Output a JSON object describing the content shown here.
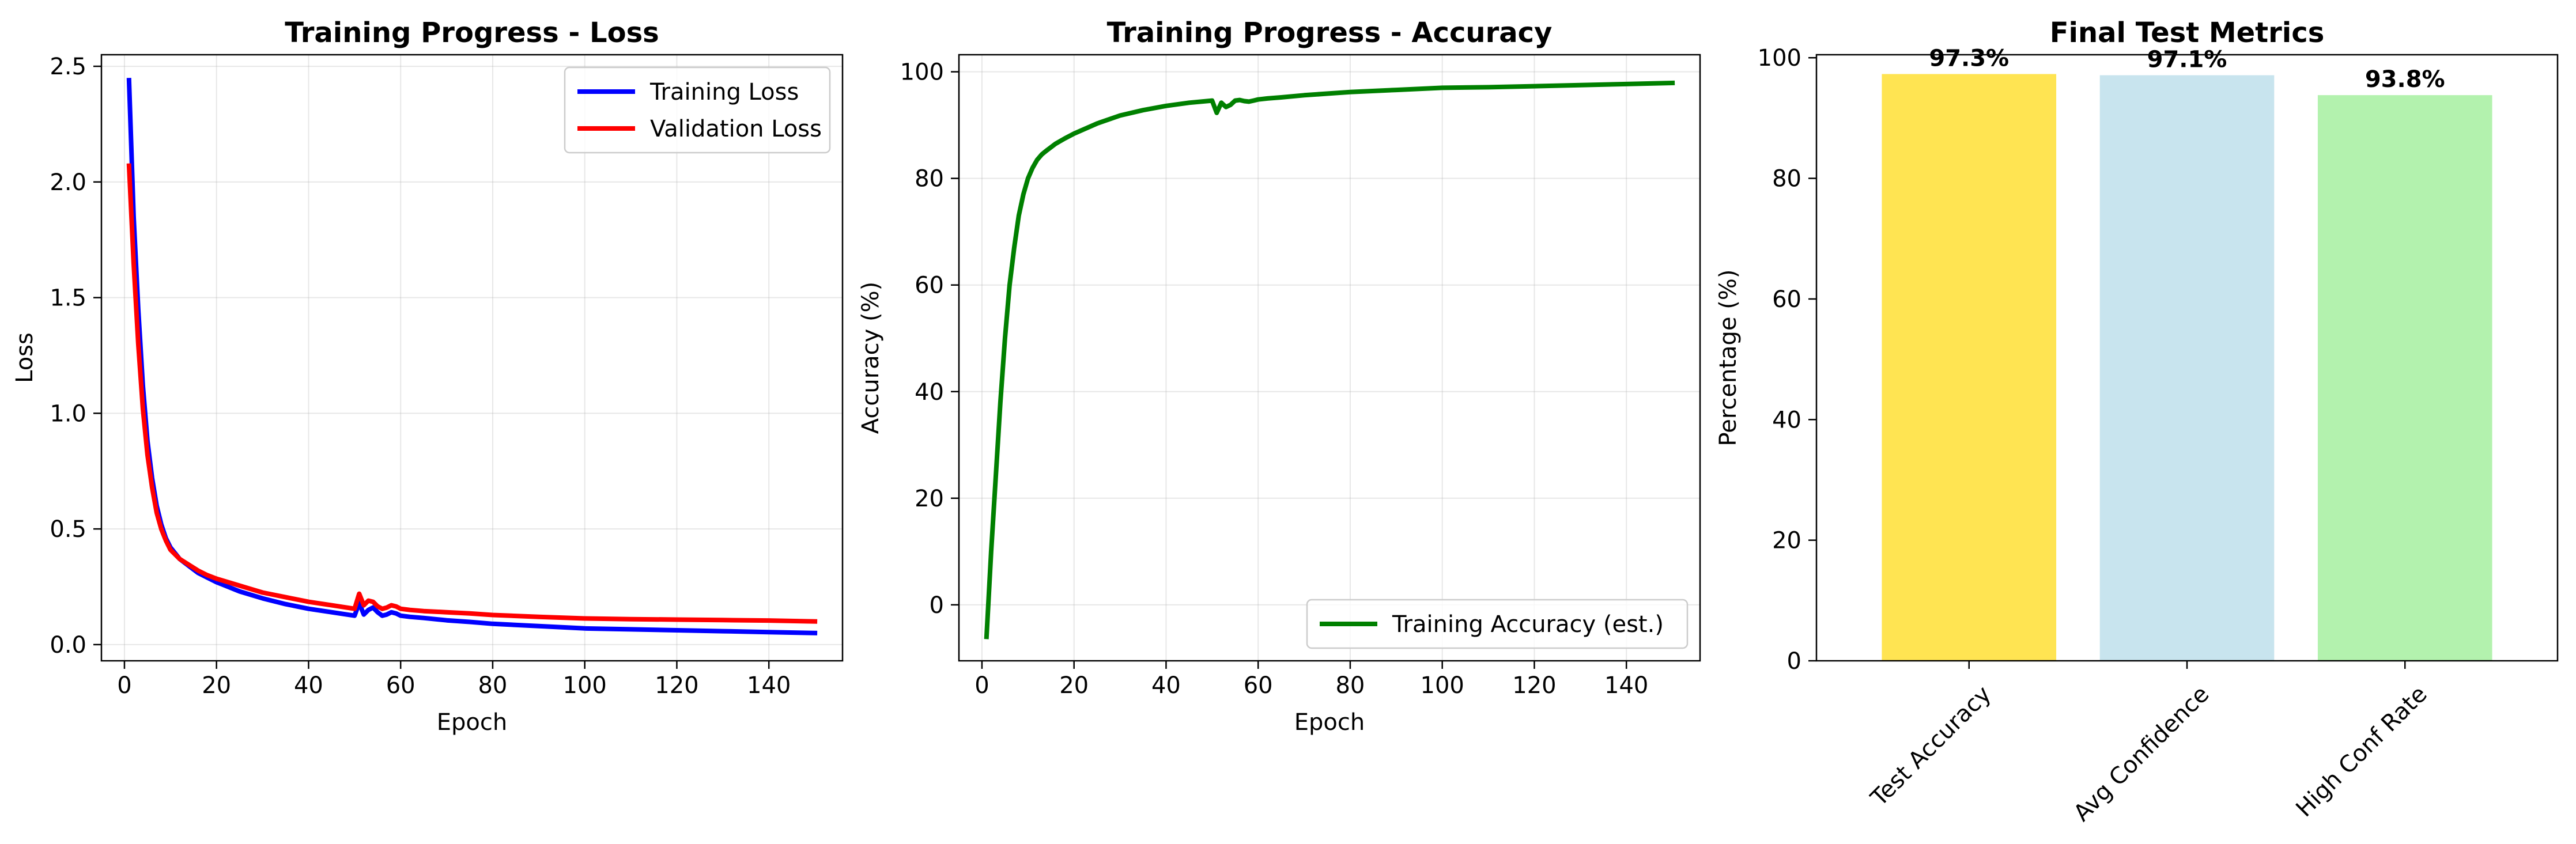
{
  "chart_data": [
    {
      "type": "line",
      "title": "Training Progress - Loss",
      "xlabel": "Epoch",
      "ylabel": "Loss",
      "xlim": [
        -5,
        156
      ],
      "ylim": [
        -0.07,
        2.55
      ],
      "xticks": [
        0,
        20,
        40,
        60,
        80,
        100,
        120,
        140
      ],
      "yticks": [
        0.0,
        0.5,
        1.0,
        1.5,
        2.0,
        2.5
      ],
      "ytick_labels": [
        "0.0",
        "0.5",
        "1.0",
        "1.5",
        "2.0",
        "2.5"
      ],
      "grid": true,
      "legend": "top-right",
      "series": [
        {
          "name": "Training Loss",
          "color": "#0000ff",
          "x": [
            1,
            2,
            3,
            4,
            5,
            6,
            7,
            8,
            9,
            10,
            12,
            14,
            16,
            18,
            20,
            25,
            30,
            35,
            40,
            45,
            50,
            51,
            52,
            53,
            54,
            55,
            56,
            57,
            58,
            59,
            60,
            62,
            65,
            70,
            75,
            80,
            90,
            100,
            110,
            120,
            130,
            140,
            150
          ],
          "y": [
            2.44,
            1.85,
            1.45,
            1.12,
            0.88,
            0.72,
            0.6,
            0.52,
            0.46,
            0.42,
            0.37,
            0.34,
            0.31,
            0.29,
            0.27,
            0.23,
            0.2,
            0.175,
            0.155,
            0.14,
            0.125,
            0.18,
            0.13,
            0.15,
            0.16,
            0.14,
            0.125,
            0.13,
            0.14,
            0.135,
            0.125,
            0.12,
            0.115,
            0.105,
            0.098,
            0.09,
            0.08,
            0.07,
            0.066,
            0.062,
            0.058,
            0.054,
            0.05
          ]
        },
        {
          "name": "Validation Loss",
          "color": "#ff0000",
          "x": [
            1,
            2,
            3,
            4,
            5,
            6,
            7,
            8,
            9,
            10,
            12,
            14,
            16,
            18,
            20,
            25,
            30,
            35,
            40,
            45,
            50,
            51,
            52,
            53,
            54,
            55,
            56,
            57,
            58,
            59,
            60,
            62,
            65,
            70,
            75,
            80,
            90,
            100,
            110,
            120,
            130,
            140,
            150
          ],
          "y": [
            2.07,
            1.65,
            1.3,
            1.02,
            0.82,
            0.68,
            0.57,
            0.5,
            0.45,
            0.41,
            0.37,
            0.345,
            0.32,
            0.3,
            0.285,
            0.255,
            0.225,
            0.205,
            0.185,
            0.17,
            0.155,
            0.22,
            0.17,
            0.19,
            0.185,
            0.165,
            0.155,
            0.16,
            0.17,
            0.165,
            0.155,
            0.15,
            0.145,
            0.14,
            0.135,
            0.128,
            0.12,
            0.113,
            0.11,
            0.108,
            0.106,
            0.104,
            0.1
          ]
        }
      ]
    },
    {
      "type": "line",
      "title": "Training Progress - Accuracy",
      "xlabel": "Epoch",
      "ylabel": "Accuracy (%)",
      "xlim": [
        -5,
        156
      ],
      "ylim": [
        -10.5,
        103.2
      ],
      "xticks": [
        0,
        20,
        40,
        60,
        80,
        100,
        120,
        140
      ],
      "yticks": [
        0,
        20,
        40,
        60,
        80,
        100
      ],
      "ytick_labels": [
        "0",
        "20",
        "40",
        "60",
        "80",
        "100"
      ],
      "grid": true,
      "legend": "bottom-right",
      "series": [
        {
          "name": "Training Accuracy (est.)",
          "color": "#008000",
          "x": [
            1,
            2,
            3,
            4,
            5,
            6,
            7,
            8,
            9,
            10,
            11,
            12,
            13,
            14,
            16,
            18,
            20,
            25,
            30,
            35,
            40,
            45,
            50,
            51,
            52,
            53,
            54,
            55,
            56,
            57,
            58,
            59,
            60,
            62,
            65,
            70,
            75,
            80,
            90,
            100,
            110,
            120,
            130,
            140,
            150
          ],
          "y": [
            -6,
            10,
            24,
            38,
            50,
            60,
            67,
            73,
            77,
            80,
            82,
            83.5,
            84.5,
            85.2,
            86.5,
            87.5,
            88.4,
            90.3,
            91.8,
            92.8,
            93.6,
            94.2,
            94.6,
            92.3,
            94.2,
            93.4,
            93.8,
            94.6,
            94.7,
            94.5,
            94.4,
            94.6,
            94.8,
            95,
            95.2,
            95.6,
            95.9,
            96.2,
            96.6,
            97,
            97.1,
            97.3,
            97.5,
            97.7,
            97.9
          ]
        }
      ]
    },
    {
      "type": "bar",
      "title": "Final Test Metrics",
      "xlabel": "",
      "ylabel": "Percentage (%)",
      "ylim": [
        0,
        100.5
      ],
      "yticks": [
        0,
        20,
        40,
        60,
        80,
        100
      ],
      "ytick_labels": [
        "0",
        "20",
        "40",
        "60",
        "80",
        "100"
      ],
      "grid": false,
      "categories": [
        "Test Accuracy",
        "Avg Confidence",
        "High Conf Rate"
      ],
      "values": [
        97.3,
        97.1,
        93.8
      ],
      "value_labels": [
        "97.3%",
        "97.1%",
        "93.8%"
      ],
      "colors": [
        "#ffdf34",
        "#bedfeb",
        "#a6f0a0"
      ]
    }
  ]
}
